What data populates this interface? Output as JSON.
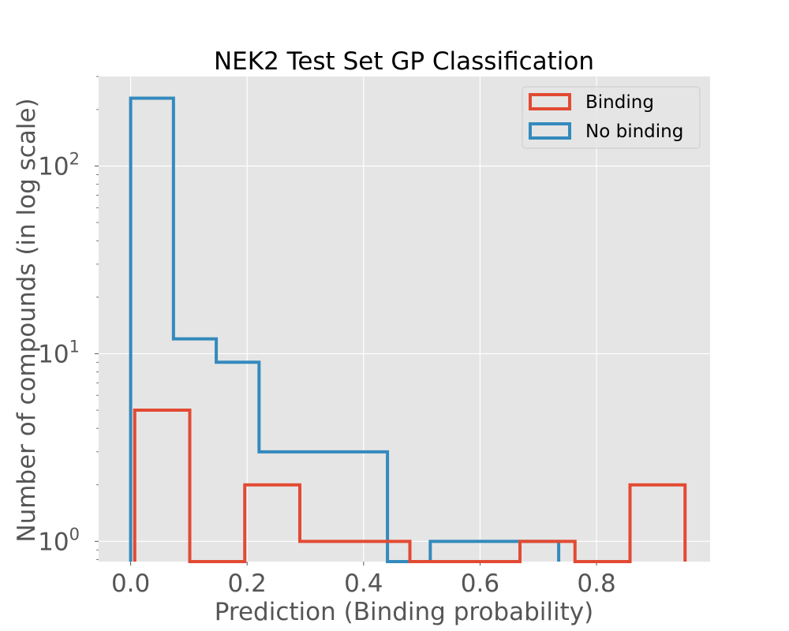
{
  "chart_data": {
    "type": "histogram",
    "title": "NEK2 Test Set GP Classification",
    "xlabel": "Prediction (Binding probability)",
    "ylabel": "Number of compounds (in log scale)",
    "yscale": "log",
    "xlim": [
      -0.055,
      0.995
    ],
    "ylim": [
      0.78,
      300
    ],
    "grid": true,
    "legend_position": "top-right",
    "x_ticks": [
      {
        "value": 0.0,
        "label": "0.0"
      },
      {
        "value": 0.2,
        "label": "0.2"
      },
      {
        "value": 0.4,
        "label": "0.4"
      },
      {
        "value": 0.6,
        "label": "0.6"
      },
      {
        "value": 0.8,
        "label": "0.8"
      }
    ],
    "y_ticks": [
      {
        "value": 1,
        "base": "10",
        "exp": "0"
      },
      {
        "value": 10,
        "base": "10",
        "exp": "1"
      },
      {
        "value": 100,
        "base": "10",
        "exp": "2"
      }
    ],
    "series": [
      {
        "name": "Binding",
        "color": "#E24A33",
        "bin_edges": [
          0.007,
          0.1015,
          0.196,
          0.2905,
          0.385,
          0.4795,
          0.574,
          0.6685,
          0.763,
          0.8575,
          0.952
        ],
        "counts": [
          5,
          0,
          2,
          1,
          1,
          0,
          0,
          1,
          0,
          2
        ]
      },
      {
        "name": "No binding",
        "color": "#348ABD",
        "bin_edges": [
          0.0,
          0.0735,
          0.147,
          0.2205,
          0.294,
          0.3675,
          0.441,
          0.5145,
          0.588,
          0.6615,
          0.735
        ],
        "counts": [
          230,
          12,
          9,
          3,
          3,
          3,
          0,
          1,
          1,
          1
        ]
      }
    ]
  },
  "colors": {
    "plot_background": "#E5E5E5",
    "grid": "#FFFFFF",
    "tick_text": "#555555"
  }
}
